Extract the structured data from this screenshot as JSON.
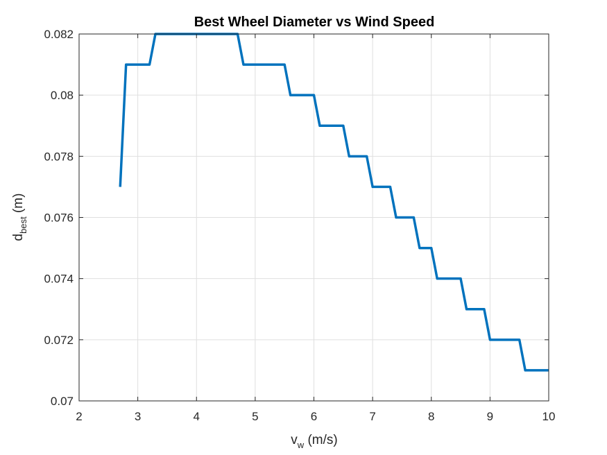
{
  "chart_data": {
    "type": "line",
    "title": "Best Wheel Diameter vs Wind Speed",
    "xlabel": {
      "main": "v",
      "sub": "w",
      "rest": " (m/s)"
    },
    "ylabel": {
      "main": "d",
      "sub": "best",
      "rest": " (m)"
    },
    "xlim": [
      2,
      10
    ],
    "ylim": [
      0.07,
      0.082
    ],
    "xticks": [
      2,
      3,
      4,
      5,
      6,
      7,
      8,
      9,
      10
    ],
    "xtick_labels": [
      "2",
      "3",
      "4",
      "5",
      "6",
      "7",
      "8",
      "9",
      "10"
    ],
    "yticks": [
      0.07,
      0.072,
      0.074,
      0.076,
      0.078,
      0.08,
      0.082
    ],
    "ytick_labels": [
      "0.07",
      "0.072",
      "0.074",
      "0.076",
      "0.078",
      "0.08",
      "0.082"
    ],
    "grid": true,
    "series": [
      {
        "color": "#0072BD",
        "x": [
          2.7,
          2.8,
          3.2,
          3.3,
          4.7,
          4.8,
          5.5,
          5.6,
          6.0,
          6.1,
          6.5,
          6.6,
          6.9,
          7.0,
          7.3,
          7.4,
          7.7,
          7.8,
          8.0,
          8.1,
          8.5,
          8.6,
          8.9,
          9.0,
          9.5,
          9.6,
          10.0
        ],
        "y": [
          0.077,
          0.081,
          0.081,
          0.082,
          0.082,
          0.081,
          0.081,
          0.08,
          0.08,
          0.079,
          0.079,
          0.078,
          0.078,
          0.077,
          0.077,
          0.076,
          0.076,
          0.075,
          0.075,
          0.074,
          0.074,
          0.073,
          0.073,
          0.072,
          0.072,
          0.071,
          0.071
        ]
      }
    ]
  }
}
